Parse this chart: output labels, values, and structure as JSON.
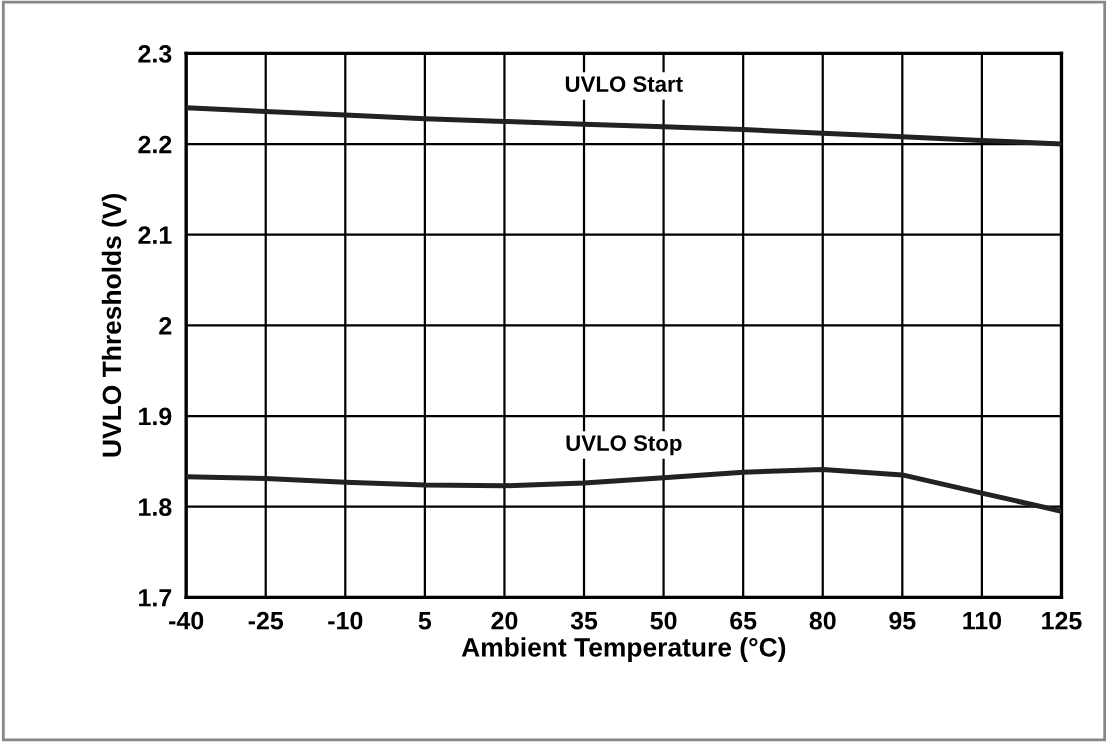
{
  "chart_data": {
    "type": "line",
    "xlabel": "Ambient Temperature (°C)",
    "ylabel": "UVLO Thresholds (V)",
    "x": [
      -40,
      -25,
      -10,
      5,
      20,
      35,
      50,
      65,
      80,
      95,
      110,
      125
    ],
    "series": [
      {
        "name": "UVLO Start",
        "color": "#222222",
        "values": [
          2.24,
          2.236,
          2.232,
          2.228,
          2.225,
          2.222,
          2.219,
          2.216,
          2.212,
          2.208,
          2.204,
          2.2
        ]
      },
      {
        "name": "UVLO Stop",
        "color": "#222222",
        "values": [
          1.833,
          1.831,
          1.827,
          1.824,
          1.823,
          1.826,
          1.832,
          1.838,
          1.841,
          1.835,
          1.815,
          1.795
        ]
      }
    ],
    "xlim": [
      -40,
      125
    ],
    "xticks": [
      -40,
      -25,
      -10,
      5,
      20,
      35,
      50,
      65,
      80,
      95,
      110,
      125
    ],
    "ylim": [
      1.7,
      2.3
    ],
    "yticks": [
      1.7,
      1.8,
      1.9,
      2,
      2.1,
      2.2,
      2.3
    ],
    "grid": true,
    "legend": false,
    "marker": "none",
    "line_style": "solid"
  }
}
